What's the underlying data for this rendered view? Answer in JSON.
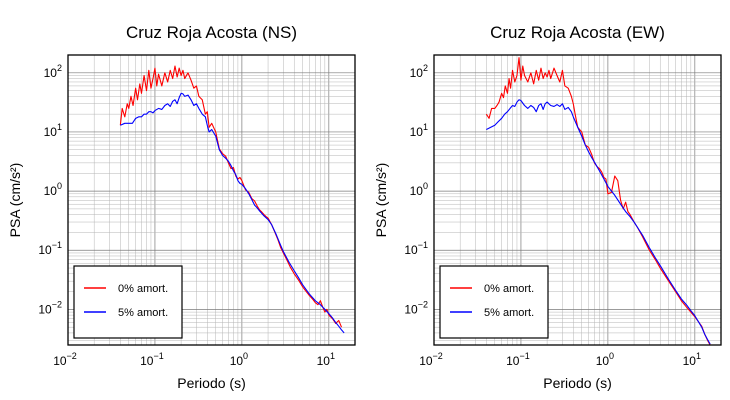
{
  "chart_data": [
    {
      "type": "line",
      "title": "Cruz Roja Acosta (NS)",
      "xlabel": "Periodo (s)",
      "ylabel": "PSA (cm/s²)",
      "xscale": "log",
      "yscale": "log",
      "xlim": [
        0.01,
        20
      ],
      "ylim": [
        0.0025,
        200
      ],
      "grid": true,
      "legend_position": "bottom-left",
      "xticks": [
        {
          "base": "10",
          "exp": "−2"
        },
        {
          "base": "10",
          "exp": "−1"
        },
        {
          "base": "10",
          "exp": "0"
        },
        {
          "base": "10",
          "exp": "1"
        }
      ],
      "yticks": [
        {
          "base": "10",
          "exp": "−2"
        },
        {
          "base": "10",
          "exp": "−1"
        },
        {
          "base": "10",
          "exp": "0"
        },
        {
          "base": "10",
          "exp": "1"
        },
        {
          "base": "10",
          "exp": "2"
        }
      ],
      "series": [
        {
          "name": "0% amort.",
          "color": "#ff0000",
          "x": [
            0.04,
            0.042,
            0.045,
            0.048,
            0.05,
            0.053,
            0.056,
            0.06,
            0.063,
            0.067,
            0.07,
            0.075,
            0.08,
            0.085,
            0.09,
            0.095,
            0.1,
            0.105,
            0.11,
            0.12,
            0.13,
            0.14,
            0.15,
            0.16,
            0.17,
            0.18,
            0.19,
            0.2,
            0.21,
            0.22,
            0.24,
            0.26,
            0.28,
            0.3,
            0.32,
            0.35,
            0.38,
            0.4,
            0.42,
            0.45,
            0.5,
            0.55,
            0.6,
            0.65,
            0.7,
            0.75,
            0.8,
            0.85,
            0.9,
            0.95,
            1.0,
            1.1,
            1.2,
            1.3,
            1.4,
            1.5,
            1.6,
            1.7,
            1.8,
            1.9,
            2.0,
            2.2,
            2.4,
            2.6,
            2.8,
            3.0,
            3.3,
            3.6,
            4.0,
            4.5,
            5.0,
            5.5,
            6.0,
            6.5,
            7.0,
            7.5,
            8.0,
            8.5,
            9.0,
            9.5,
            10.0,
            11.0,
            12.0,
            13.0,
            14.0
          ],
          "y": [
            13,
            25,
            18,
            30,
            25,
            40,
            28,
            55,
            35,
            65,
            45,
            90,
            50,
            110,
            55,
            80,
            120,
            60,
            95,
            60,
            100,
            70,
            110,
            80,
            130,
            85,
            120,
            90,
            110,
            80,
            100,
            75,
            55,
            60,
            40,
            35,
            20,
            22,
            12,
            14,
            10,
            5.2,
            4.3,
            3.9,
            3.0,
            2.4,
            2.5,
            1.8,
            1.6,
            1.7,
            1.5,
            1.05,
            0.95,
            0.75,
            0.68,
            0.56,
            0.48,
            0.44,
            0.4,
            0.37,
            0.35,
            0.27,
            0.2,
            0.15,
            0.11,
            0.09,
            0.068,
            0.052,
            0.04,
            0.031,
            0.024,
            0.02,
            0.017,
            0.015,
            0.013,
            0.012,
            0.014,
            0.011,
            0.009,
            0.01,
            0.008,
            0.007,
            0.0058,
            0.0065,
            0.005
          ]
        },
        {
          "name": "5% amort.",
          "color": "#0000ff",
          "x": [
            0.04,
            0.045,
            0.05,
            0.055,
            0.06,
            0.065,
            0.07,
            0.075,
            0.08,
            0.085,
            0.09,
            0.095,
            0.1,
            0.11,
            0.12,
            0.13,
            0.14,
            0.15,
            0.16,
            0.17,
            0.18,
            0.19,
            0.2,
            0.21,
            0.22,
            0.24,
            0.26,
            0.28,
            0.3,
            0.32,
            0.35,
            0.38,
            0.4,
            0.42,
            0.45,
            0.5,
            0.55,
            0.6,
            0.65,
            0.7,
            0.75,
            0.8,
            0.85,
            0.9,
            0.95,
            1.0,
            1.1,
            1.2,
            1.3,
            1.4,
            1.5,
            1.6,
            1.8,
            2.0,
            2.2,
            2.5,
            2.8,
            3.0,
            3.5,
            4.0,
            4.5,
            5.0,
            6.0,
            7.0,
            8.0,
            9.0,
            10.0,
            11.0,
            12.0,
            13.0,
            14.0,
            15.0
          ],
          "y": [
            13,
            14,
            14,
            14,
            17,
            18,
            18,
            20,
            20,
            22,
            22,
            21,
            23,
            25,
            24,
            28,
            30,
            27,
            33,
            35,
            30,
            38,
            45,
            44,
            40,
            42,
            35,
            28,
            30,
            25,
            20,
            18,
            13,
            10,
            11,
            8.5,
            5,
            4,
            3.6,
            3.2,
            2.7,
            2.2,
            1.9,
            1.5,
            1.35,
            1.3,
            1.1,
            0.9,
            0.72,
            0.58,
            0.52,
            0.46,
            0.38,
            0.33,
            0.27,
            0.18,
            0.12,
            0.095,
            0.062,
            0.045,
            0.034,
            0.026,
            0.018,
            0.014,
            0.012,
            0.01,
            0.0085,
            0.0072,
            0.006,
            0.0052,
            0.0045,
            0.004
          ]
        }
      ]
    },
    {
      "type": "line",
      "title": "Cruz Roja Acosta (EW)",
      "xlabel": "Periodo (s)",
      "ylabel": "PSA (cm/s²)",
      "xscale": "log",
      "yscale": "log",
      "xlim": [
        0.01,
        20
      ],
      "ylim": [
        0.0025,
        200
      ],
      "grid": true,
      "legend_position": "bottom-left",
      "xticks": [
        {
          "base": "10",
          "exp": "−2"
        },
        {
          "base": "10",
          "exp": "−1"
        },
        {
          "base": "10",
          "exp": "0"
        },
        {
          "base": "10",
          "exp": "1"
        }
      ],
      "yticks": [
        {
          "base": "10",
          "exp": "−2"
        },
        {
          "base": "10",
          "exp": "−1"
        },
        {
          "base": "10",
          "exp": "0"
        },
        {
          "base": "10",
          "exp": "1"
        },
        {
          "base": "10",
          "exp": "2"
        }
      ],
      "series": [
        {
          "name": "0% amort.",
          "color": "#ff0000",
          "x": [
            0.04,
            0.043,
            0.046,
            0.05,
            0.053,
            0.056,
            0.06,
            0.063,
            0.066,
            0.07,
            0.073,
            0.076,
            0.08,
            0.085,
            0.09,
            0.095,
            0.1,
            0.105,
            0.11,
            0.12,
            0.13,
            0.14,
            0.15,
            0.16,
            0.17,
            0.18,
            0.19,
            0.2,
            0.21,
            0.22,
            0.24,
            0.26,
            0.28,
            0.3,
            0.32,
            0.35,
            0.38,
            0.4,
            0.42,
            0.45,
            0.5,
            0.55,
            0.6,
            0.65,
            0.7,
            0.75,
            0.8,
            0.85,
            0.9,
            0.95,
            1.0,
            1.1,
            1.2,
            1.3,
            1.4,
            1.5,
            1.6,
            1.7,
            1.8,
            2.0,
            2.2,
            2.5,
            3.0,
            3.5,
            4.0,
            5.0,
            6.0,
            7.0,
            8.0,
            9.0,
            10.0,
            11.0,
            12.0,
            13.0,
            14.0,
            15.0
          ],
          "y": [
            20,
            17,
            25,
            25,
            28,
            32,
            45,
            38,
            60,
            45,
            80,
            55,
            110,
            70,
            90,
            180,
            75,
            130,
            90,
            70,
            100,
            65,
            110,
            75,
            120,
            80,
            100,
            85,
            110,
            80,
            120,
            90,
            70,
            110,
            60,
            55,
            40,
            30,
            20,
            12,
            10,
            6,
            5.5,
            4.2,
            3.0,
            2.6,
            2.4,
            2.1,
            1.7,
            1.6,
            0.9,
            0.95,
            1.8,
            1.5,
            0.7,
            0.5,
            0.65,
            0.45,
            0.4,
            0.3,
            0.24,
            0.17,
            0.1,
            0.07,
            0.05,
            0.03,
            0.02,
            0.014,
            0.011,
            0.009,
            0.0075,
            0.0062,
            0.0052,
            0.0038,
            0.003,
            0.0025
          ]
        },
        {
          "name": "5% amort.",
          "color": "#0000ff",
          "x": [
            0.04,
            0.045,
            0.05,
            0.055,
            0.06,
            0.065,
            0.07,
            0.075,
            0.08,
            0.085,
            0.09,
            0.095,
            0.1,
            0.11,
            0.12,
            0.13,
            0.14,
            0.15,
            0.16,
            0.17,
            0.18,
            0.19,
            0.2,
            0.22,
            0.24,
            0.26,
            0.28,
            0.3,
            0.32,
            0.35,
            0.38,
            0.4,
            0.45,
            0.5,
            0.55,
            0.6,
            0.65,
            0.7,
            0.8,
            0.9,
            1.0,
            1.1,
            1.2,
            1.4,
            1.6,
            1.8,
            2.0,
            2.5,
            3.0,
            3.5,
            4.0,
            5.0,
            6.0,
            7.0,
            8.0,
            9.0,
            10.0,
            11.0,
            12.0,
            13.0,
            14.0,
            15.0
          ],
          "y": [
            11,
            12,
            13,
            15,
            17,
            20,
            22,
            25,
            28,
            27,
            32,
            35,
            34,
            28,
            25,
            28,
            26,
            22,
            28,
            30,
            24,
            30,
            32,
            28,
            27,
            29,
            27,
            30,
            24,
            26,
            22,
            18,
            12,
            8.5,
            6,
            4.6,
            3.7,
            3.1,
            2.2,
            1.6,
            1.2,
            1.0,
            0.85,
            0.6,
            0.45,
            0.37,
            0.3,
            0.18,
            0.11,
            0.075,
            0.055,
            0.032,
            0.021,
            0.015,
            0.012,
            0.0095,
            0.0078,
            0.0062,
            0.005,
            0.0038,
            0.0031,
            0.0026
          ]
        }
      ]
    }
  ]
}
